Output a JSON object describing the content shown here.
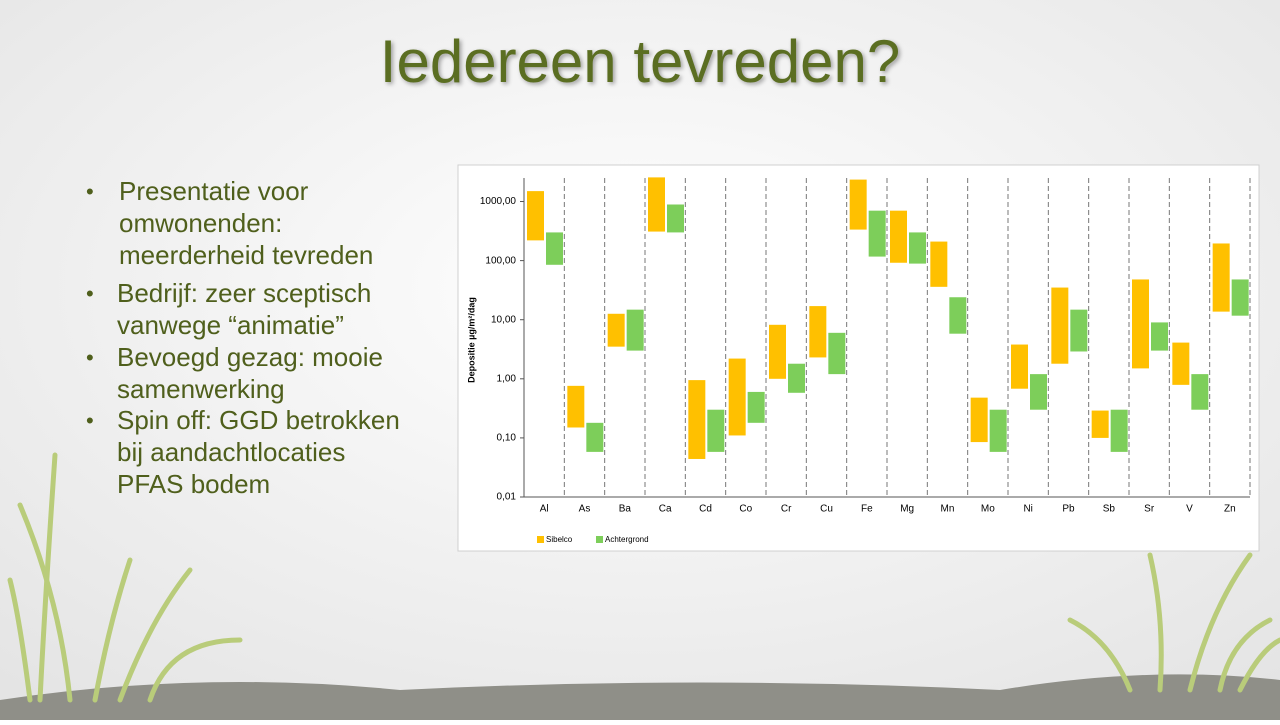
{
  "title": "Iedereen tevreden?",
  "bullets": [
    [
      "Presentatie voor",
      "omwonenden:",
      "meerderheid tevreden"
    ],
    [
      "Bedrijf: zeer sceptisch",
      "vanwege “animatie”"
    ],
    [
      "Bevoegd gezag: mooie",
      "samenwerking"
    ],
    [
      "Spin off: GGD betrokken",
      "bij aandachtlocaties",
      "PFAS bodem"
    ]
  ],
  "chart_data": {
    "type": "floating_bar",
    "y_label": "Depositie µg/m²/dag",
    "log_scale": true,
    "categories": [
      "Al",
      "As",
      "Ba",
      "Ca",
      "Cd",
      "Co",
      "Cr",
      "Cu",
      "Fe",
      "Mg",
      "Mn",
      "Mo",
      "Ni",
      "Pb",
      "Sb",
      "Sr",
      "V",
      "Zn"
    ],
    "series": [
      {
        "name": "Sibelco",
        "color": "#ffc000",
        "low": [
          220,
          0.15,
          3.5,
          310,
          0.044,
          0.11,
          1.0,
          2.3,
          335,
          92,
          36,
          0.085,
          0.68,
          1.8,
          0.1,
          1.5,
          0.79,
          13.7
        ],
        "high": [
          1500,
          0.76,
          12.6,
          2560,
          0.95,
          2.2,
          8.2,
          17,
          2350,
          700,
          210,
          0.48,
          3.8,
          35,
          0.29,
          48,
          4.1,
          195
        ]
      },
      {
        "name": "Achtergrond",
        "color": "#7dce5a",
        "low": [
          85,
          0.058,
          3.0,
          300,
          0.058,
          0.18,
          0.58,
          1.2,
          117,
          89,
          5.8,
          0.058,
          0.3,
          2.9,
          0.058,
          3.0,
          0.3,
          11.7
        ],
        "high": [
          300,
          0.18,
          14.8,
          890,
          0.3,
          0.6,
          1.8,
          6,
          700,
          300,
          24,
          0.3,
          1.2,
          14.8,
          0.3,
          9,
          1.2,
          48
        ]
      }
    ],
    "ylim": [
      0.01,
      2500
    ],
    "yticks": [
      {
        "value": 0.01,
        "label": "0,01"
      },
      {
        "value": 0.1,
        "label": "0,10"
      },
      {
        "value": 1,
        "label": "1,00"
      },
      {
        "value": 10,
        "label": "10,00"
      },
      {
        "value": 100,
        "label": "100,00"
      },
      {
        "value": 1000,
        "label": "1000,00"
      }
    ]
  }
}
